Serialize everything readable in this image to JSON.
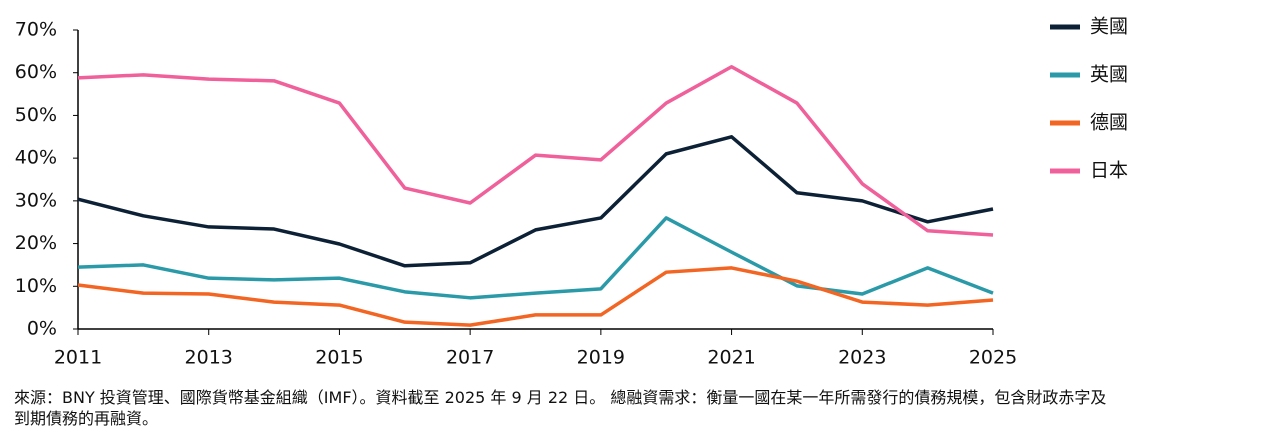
{
  "chart_data": {
    "type": "line",
    "x": [
      2011,
      2012,
      2013,
      2014,
      2015,
      2016,
      2017,
      2018,
      2019,
      2020,
      2021,
      2022,
      2023,
      2024,
      2025
    ],
    "xlim": [
      2011,
      2025
    ],
    "xticks": [
      2011,
      2013,
      2015,
      2017,
      2019,
      2021,
      2023,
      2025
    ],
    "ylim": [
      0,
      70
    ],
    "yticks": [
      {
        "value": 0,
        "label": "0%"
      },
      {
        "value": 10,
        "label": "10%"
      },
      {
        "value": 20,
        "label": "20%"
      },
      {
        "value": 30,
        "label": "30%"
      },
      {
        "value": 40,
        "label": "40%"
      },
      {
        "value": 50,
        "label": "50%"
      },
      {
        "value": 60,
        "label": "60%"
      },
      {
        "value": 70,
        "label": "70%"
      }
    ],
    "grid": false,
    "legend": "right",
    "series": [
      {
        "name": "美國",
        "color": "#0d2136",
        "values": [
          30.4,
          26.5,
          23.9,
          23.4,
          19.9,
          14.8,
          15.5,
          23.2,
          26.0,
          41.0,
          45.0,
          31.9,
          30.0,
          25.1,
          28.1
        ]
      },
      {
        "name": "英國",
        "color": "#2a9aa8",
        "values": [
          14.5,
          15.0,
          11.9,
          11.5,
          11.9,
          8.7,
          7.3,
          8.4,
          9.4,
          26.0,
          18.0,
          10.1,
          8.2,
          14.3,
          8.4
        ]
      },
      {
        "name": "德國",
        "color": "#f26522",
        "values": [
          10.3,
          8.4,
          8.2,
          6.3,
          5.6,
          1.6,
          0.9,
          3.3,
          3.3,
          13.3,
          14.3,
          11.2,
          6.3,
          5.6,
          6.8
        ]
      },
      {
        "name": "日本",
        "color": "#f0609a",
        "values": [
          58.8,
          59.5,
          58.5,
          58.1,
          52.9,
          33.0,
          29.5,
          40.7,
          39.6,
          52.9,
          61.4,
          52.9,
          34.0,
          23.0,
          22.0
        ]
      }
    ],
    "source": "來源：BNY 投資管理、國際貨幣基金組織（IMF）。資料截至 2025 年 9 月 22 日。 總融資需求：衡量一國在某一年所需發行的債務規模，包含財政赤字及到期債務的再融資。"
  }
}
